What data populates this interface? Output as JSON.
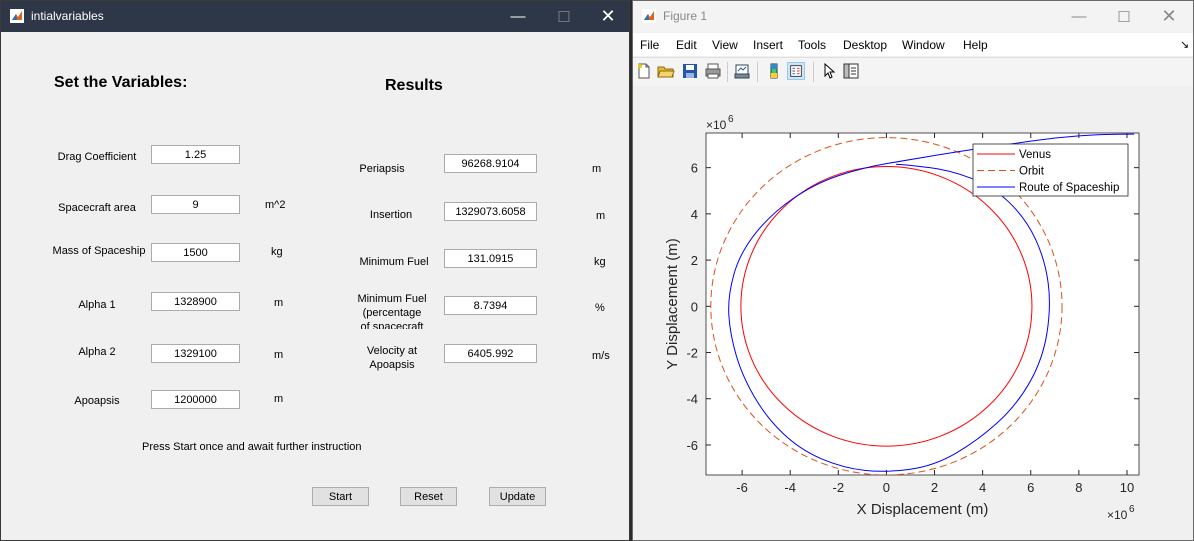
{
  "left_window": {
    "title": "intialvariables",
    "set_heading": "Set the Variables:",
    "results_heading": "Results",
    "inputs": [
      {
        "label": "Drag Coefficient",
        "value": "1.25",
        "unit": ""
      },
      {
        "label": "Spacecraft area",
        "value": "9",
        "unit": "m^2"
      },
      {
        "label": "Mass of Spaceship",
        "value": "1500",
        "unit": "kg"
      },
      {
        "label": "Alpha 1",
        "value": "1328900",
        "unit": "m"
      },
      {
        "label": "Alpha 2",
        "value": "1329100",
        "unit": "m"
      },
      {
        "label": "Apoapsis",
        "value": "1200000",
        "unit": "m"
      }
    ],
    "results": [
      {
        "label": "Periapsis",
        "value": "96268.9104",
        "unit": "m"
      },
      {
        "label": "Insertion",
        "value": "1329073.6058",
        "unit": "m"
      },
      {
        "label": "Minimum Fuel",
        "value": "131.0915",
        "unit": "kg"
      },
      {
        "label_lines": [
          "Minimum Fuel",
          "(percentage",
          "of spacecraft"
        ],
        "value": "8.7394",
        "unit": "%"
      },
      {
        "label_lines": [
          "Velocity at",
          "Apoapsis"
        ],
        "value": "6405.992",
        "unit": "m/s"
      }
    ],
    "instruction": "Press Start once and await further instruction",
    "buttons": {
      "start": "Start",
      "reset": "Reset",
      "update": "Update"
    }
  },
  "right_window": {
    "title": "Figure 1",
    "menu": [
      "File",
      "Edit",
      "View",
      "Insert",
      "Tools",
      "Desktop",
      "Window",
      "Help"
    ],
    "menu_arrow": "↘"
  },
  "chart_data": {
    "type": "line",
    "title": "",
    "xlabel": "X Displacement (m)",
    "ylabel": "Y Displacement (m)",
    "x_exponent_label": "×10",
    "y_exponent_label": "×10",
    "exponent": "6",
    "xlim": [
      -7.5,
      10.5
    ],
    "ylim": [
      -7.3,
      7.5
    ],
    "xticks": [
      -6,
      -4,
      -2,
      0,
      2,
      4,
      6,
      8,
      10
    ],
    "yticks": [
      -6,
      -4,
      -2,
      0,
      2,
      4,
      6
    ],
    "scale": "x1e6",
    "legend_position": "top-right",
    "series": [
      {
        "name": "Venus",
        "color": "#ff0000",
        "style": "solid",
        "shape": "circle",
        "radius": 6.05
      },
      {
        "name": "Orbit",
        "color": "#d95319",
        "style": "dashed",
        "shape": "circle",
        "radius": 7.3
      },
      {
        "name": "Route of Spaceship",
        "color": "#0000ff",
        "style": "solid",
        "points": [
          [
            10.3,
            7.45
          ],
          [
            9,
            7.45
          ],
          [
            7,
            7.3
          ],
          [
            5,
            7.0
          ],
          [
            3,
            6.7
          ],
          [
            1,
            6.35
          ],
          [
            -1,
            6.0
          ],
          [
            -3,
            5.3
          ],
          [
            -4.8,
            4.0
          ],
          [
            -6.1,
            2.3
          ],
          [
            -6.6,
            0.4
          ],
          [
            -6.5,
            -1.2
          ],
          [
            -6.0,
            -3.0
          ],
          [
            -5.0,
            -4.8
          ],
          [
            -3.6,
            -6.2
          ],
          [
            -1.8,
            -7.0
          ],
          [
            0,
            -7.2
          ],
          [
            2,
            -6.9
          ],
          [
            3.8,
            -5.8
          ],
          [
            5.4,
            -4.3
          ],
          [
            6.5,
            -2.3
          ],
          [
            6.85,
            0
          ],
          [
            6.6,
            2.0
          ],
          [
            5.8,
            3.8
          ],
          [
            4.4,
            5.2
          ],
          [
            2.6,
            5.9
          ],
          [
            1,
            6.1
          ],
          [
            0.4,
            6.15
          ]
        ]
      }
    ]
  }
}
